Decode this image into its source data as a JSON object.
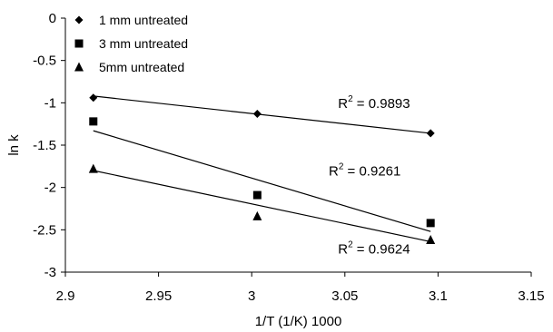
{
  "chart_data": {
    "type": "scatter",
    "title": "",
    "xlabel": "1/T (1/K) 1000",
    "ylabel": "ln k",
    "xlim": [
      2.9,
      3.15
    ],
    "ylim": [
      -3,
      0
    ],
    "x_ticks": [
      "2.9",
      "2.95",
      "3",
      "3.05",
      "3.1",
      "3.15"
    ],
    "y_ticks": [
      "0",
      "-0.5",
      "-1",
      "-1.5",
      "-2",
      "-2.5",
      "-3"
    ],
    "grid": false,
    "legend_position": "top-left",
    "series": [
      {
        "name": "1 mm untreated",
        "marker": "diamond",
        "x": [
          2.915,
          3.003,
          3.096
        ],
        "y": [
          -0.94,
          -1.13,
          -1.36
        ],
        "trendline": {
          "r2": "0.9893",
          "from": [
            2.915,
            -0.92
          ],
          "to": [
            3.096,
            -1.36
          ]
        }
      },
      {
        "name": "3 mm untreated",
        "marker": "square",
        "x": [
          2.915,
          3.003,
          3.096
        ],
        "y": [
          -1.22,
          -2.09,
          -2.42
        ],
        "trendline": {
          "r2": "0.9261",
          "from": [
            2.915,
            -1.33
          ],
          "to": [
            3.096,
            -2.52
          ]
        }
      },
      {
        "name": "5mm untreated",
        "marker": "triangle",
        "x": [
          2.915,
          3.003,
          3.096
        ],
        "y": [
          -1.78,
          -2.34,
          -2.62
        ],
        "trendline": {
          "r2": "0.9624",
          "from": [
            2.915,
            -1.8
          ],
          "to": [
            3.096,
            -2.64
          ]
        }
      }
    ],
    "annotations": [
      {
        "text": "R",
        "sup": "2",
        "rest": " = 0.9893",
        "x": 3.085,
        "y": -1.06,
        "series": 0
      },
      {
        "text": "R",
        "sup": "2",
        "rest": " = 0.9261",
        "x": 3.08,
        "y": -1.86,
        "series": 1
      },
      {
        "text": "R",
        "sup": "2",
        "rest": " = 0.9624",
        "x": 3.085,
        "y": -2.78,
        "series": 2
      }
    ]
  }
}
